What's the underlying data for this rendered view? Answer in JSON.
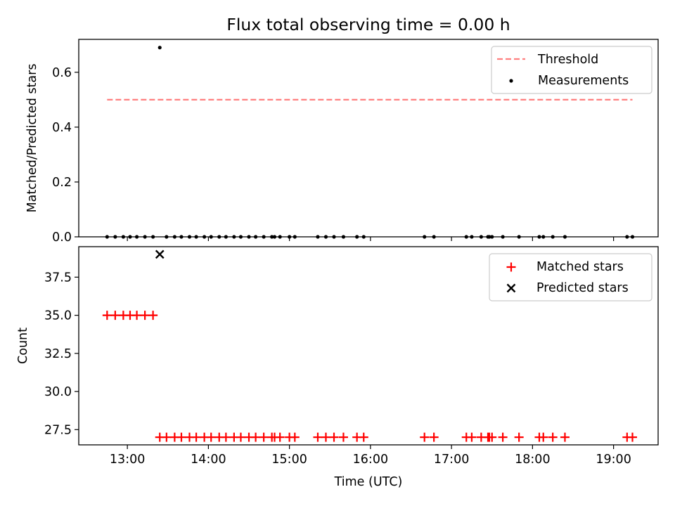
{
  "figure": {
    "title": "Flux total observing time = 0.00 h",
    "xlabel": "Time (UTC)",
    "x_tick_labels": [
      "13:00",
      "14:00",
      "15:00",
      "16:00",
      "17:00",
      "18:00",
      "19:00"
    ]
  },
  "colors": {
    "threshold": "#ff7f7f",
    "measurements": "#000000",
    "matched": "#ff0000",
    "predicted": "#000000"
  },
  "chart_data": [
    {
      "type": "scatter",
      "panel": "top",
      "ylabel": "Matched/Predicted stars",
      "xlim": [
        "12:24",
        "19:33"
      ],
      "ylim": [
        0.0,
        0.72
      ],
      "y_ticks": [
        0.0,
        0.2,
        0.4,
        0.6
      ],
      "y_tick_labels": [
        "0.0",
        "0.2",
        "0.4",
        "0.6"
      ],
      "legend_position": "top-right",
      "threshold": {
        "name": "Threshold",
        "style": "dashed",
        "y": 0.5,
        "x_start": "12:45",
        "x_end": "19:14"
      },
      "series": [
        {
          "name": "Measurements",
          "marker": "dot",
          "points": [
            {
              "x": "12:45",
              "y": 0.0
            },
            {
              "x": "12:51",
              "y": 0.0
            },
            {
              "x": "12:57",
              "y": 0.0
            },
            {
              "x": "13:02",
              "y": 0.0
            },
            {
              "x": "13:07",
              "y": 0.0
            },
            {
              "x": "13:13",
              "y": 0.0
            },
            {
              "x": "13:19",
              "y": 0.0
            },
            {
              "x": "13:24",
              "y": 0.69
            },
            {
              "x": "13:29",
              "y": 0.0
            },
            {
              "x": "13:35",
              "y": 0.0
            },
            {
              "x": "13:40",
              "y": 0.0
            },
            {
              "x": "13:46",
              "y": 0.0
            },
            {
              "x": "13:51",
              "y": 0.0
            },
            {
              "x": "13:57",
              "y": 0.0
            },
            {
              "x": "14:02",
              "y": 0.0
            },
            {
              "x": "14:08",
              "y": 0.0
            },
            {
              "x": "14:13",
              "y": 0.0
            },
            {
              "x": "14:19",
              "y": 0.0
            },
            {
              "x": "14:24",
              "y": 0.0
            },
            {
              "x": "14:30",
              "y": 0.0
            },
            {
              "x": "14:35",
              "y": 0.0
            },
            {
              "x": "14:41",
              "y": 0.0
            },
            {
              "x": "14:47",
              "y": 0.0
            },
            {
              "x": "14:49",
              "y": 0.0
            },
            {
              "x": "14:53",
              "y": 0.0
            },
            {
              "x": "15:00",
              "y": 0.0
            },
            {
              "x": "15:04",
              "y": 0.0
            },
            {
              "x": "15:21",
              "y": 0.0
            },
            {
              "x": "15:27",
              "y": 0.0
            },
            {
              "x": "15:33",
              "y": 0.0
            },
            {
              "x": "15:40",
              "y": 0.0
            },
            {
              "x": "15:50",
              "y": 0.0
            },
            {
              "x": "15:55",
              "y": 0.0
            },
            {
              "x": "16:40",
              "y": 0.0
            },
            {
              "x": "16:47",
              "y": 0.0
            },
            {
              "x": "17:11",
              "y": 0.0
            },
            {
              "x": "17:15",
              "y": 0.0
            },
            {
              "x": "17:22",
              "y": 0.0
            },
            {
              "x": "17:27",
              "y": 0.0
            },
            {
              "x": "17:28",
              "y": 0.0
            },
            {
              "x": "17:30",
              "y": 0.0
            },
            {
              "x": "17:38",
              "y": 0.0
            },
            {
              "x": "17:50",
              "y": 0.0
            },
            {
              "x": "18:05",
              "y": 0.0
            },
            {
              "x": "18:08",
              "y": 0.0
            },
            {
              "x": "18:15",
              "y": 0.0
            },
            {
              "x": "18:24",
              "y": 0.0
            },
            {
              "x": "19:10",
              "y": 0.0
            },
            {
              "x": "19:14",
              "y": 0.0
            }
          ]
        }
      ]
    },
    {
      "type": "scatter",
      "panel": "bottom",
      "ylabel": "Count",
      "xlim": [
        "12:24",
        "19:33"
      ],
      "ylim": [
        26.5,
        39.5
      ],
      "y_ticks": [
        27.5,
        30.0,
        32.5,
        35.0,
        37.5
      ],
      "y_tick_labels": [
        "27.5",
        "30.0",
        "32.5",
        "35.0",
        "37.5"
      ],
      "legend_position": "top-right",
      "series": [
        {
          "name": "Matched stars",
          "marker": "plus",
          "points": [
            {
              "x": "12:45",
              "y": 35
            },
            {
              "x": "12:51",
              "y": 35
            },
            {
              "x": "12:57",
              "y": 35
            },
            {
              "x": "13:02",
              "y": 35
            },
            {
              "x": "13:07",
              "y": 35
            },
            {
              "x": "13:13",
              "y": 35
            },
            {
              "x": "13:19",
              "y": 35
            },
            {
              "x": "13:24",
              "y": 27
            },
            {
              "x": "13:29",
              "y": 27
            },
            {
              "x": "13:35",
              "y": 27
            },
            {
              "x": "13:40",
              "y": 27
            },
            {
              "x": "13:46",
              "y": 27
            },
            {
              "x": "13:51",
              "y": 27
            },
            {
              "x": "13:57",
              "y": 27
            },
            {
              "x": "14:02",
              "y": 27
            },
            {
              "x": "14:08",
              "y": 27
            },
            {
              "x": "14:13",
              "y": 27
            },
            {
              "x": "14:19",
              "y": 27
            },
            {
              "x": "14:24",
              "y": 27
            },
            {
              "x": "14:30",
              "y": 27
            },
            {
              "x": "14:35",
              "y": 27
            },
            {
              "x": "14:41",
              "y": 27
            },
            {
              "x": "14:47",
              "y": 27
            },
            {
              "x": "14:49",
              "y": 27
            },
            {
              "x": "14:53",
              "y": 27
            },
            {
              "x": "15:00",
              "y": 27
            },
            {
              "x": "15:04",
              "y": 27
            },
            {
              "x": "15:21",
              "y": 27
            },
            {
              "x": "15:27",
              "y": 27
            },
            {
              "x": "15:33",
              "y": 27
            },
            {
              "x": "15:40",
              "y": 27
            },
            {
              "x": "15:50",
              "y": 27
            },
            {
              "x": "15:55",
              "y": 27
            },
            {
              "x": "16:40",
              "y": 27
            },
            {
              "x": "16:47",
              "y": 27
            },
            {
              "x": "17:11",
              "y": 27
            },
            {
              "x": "17:15",
              "y": 27
            },
            {
              "x": "17:22",
              "y": 27
            },
            {
              "x": "17:27",
              "y": 27
            },
            {
              "x": "17:28",
              "y": 27
            },
            {
              "x": "17:30",
              "y": 27
            },
            {
              "x": "17:38",
              "y": 27
            },
            {
              "x": "17:50",
              "y": 27
            },
            {
              "x": "18:05",
              "y": 27
            },
            {
              "x": "18:08",
              "y": 27
            },
            {
              "x": "18:15",
              "y": 27
            },
            {
              "x": "18:24",
              "y": 27
            },
            {
              "x": "19:10",
              "y": 27
            },
            {
              "x": "19:14",
              "y": 27
            }
          ]
        },
        {
          "name": "Predicted stars",
          "marker": "x",
          "points": [
            {
              "x": "13:24",
              "y": 39
            }
          ]
        }
      ]
    }
  ]
}
